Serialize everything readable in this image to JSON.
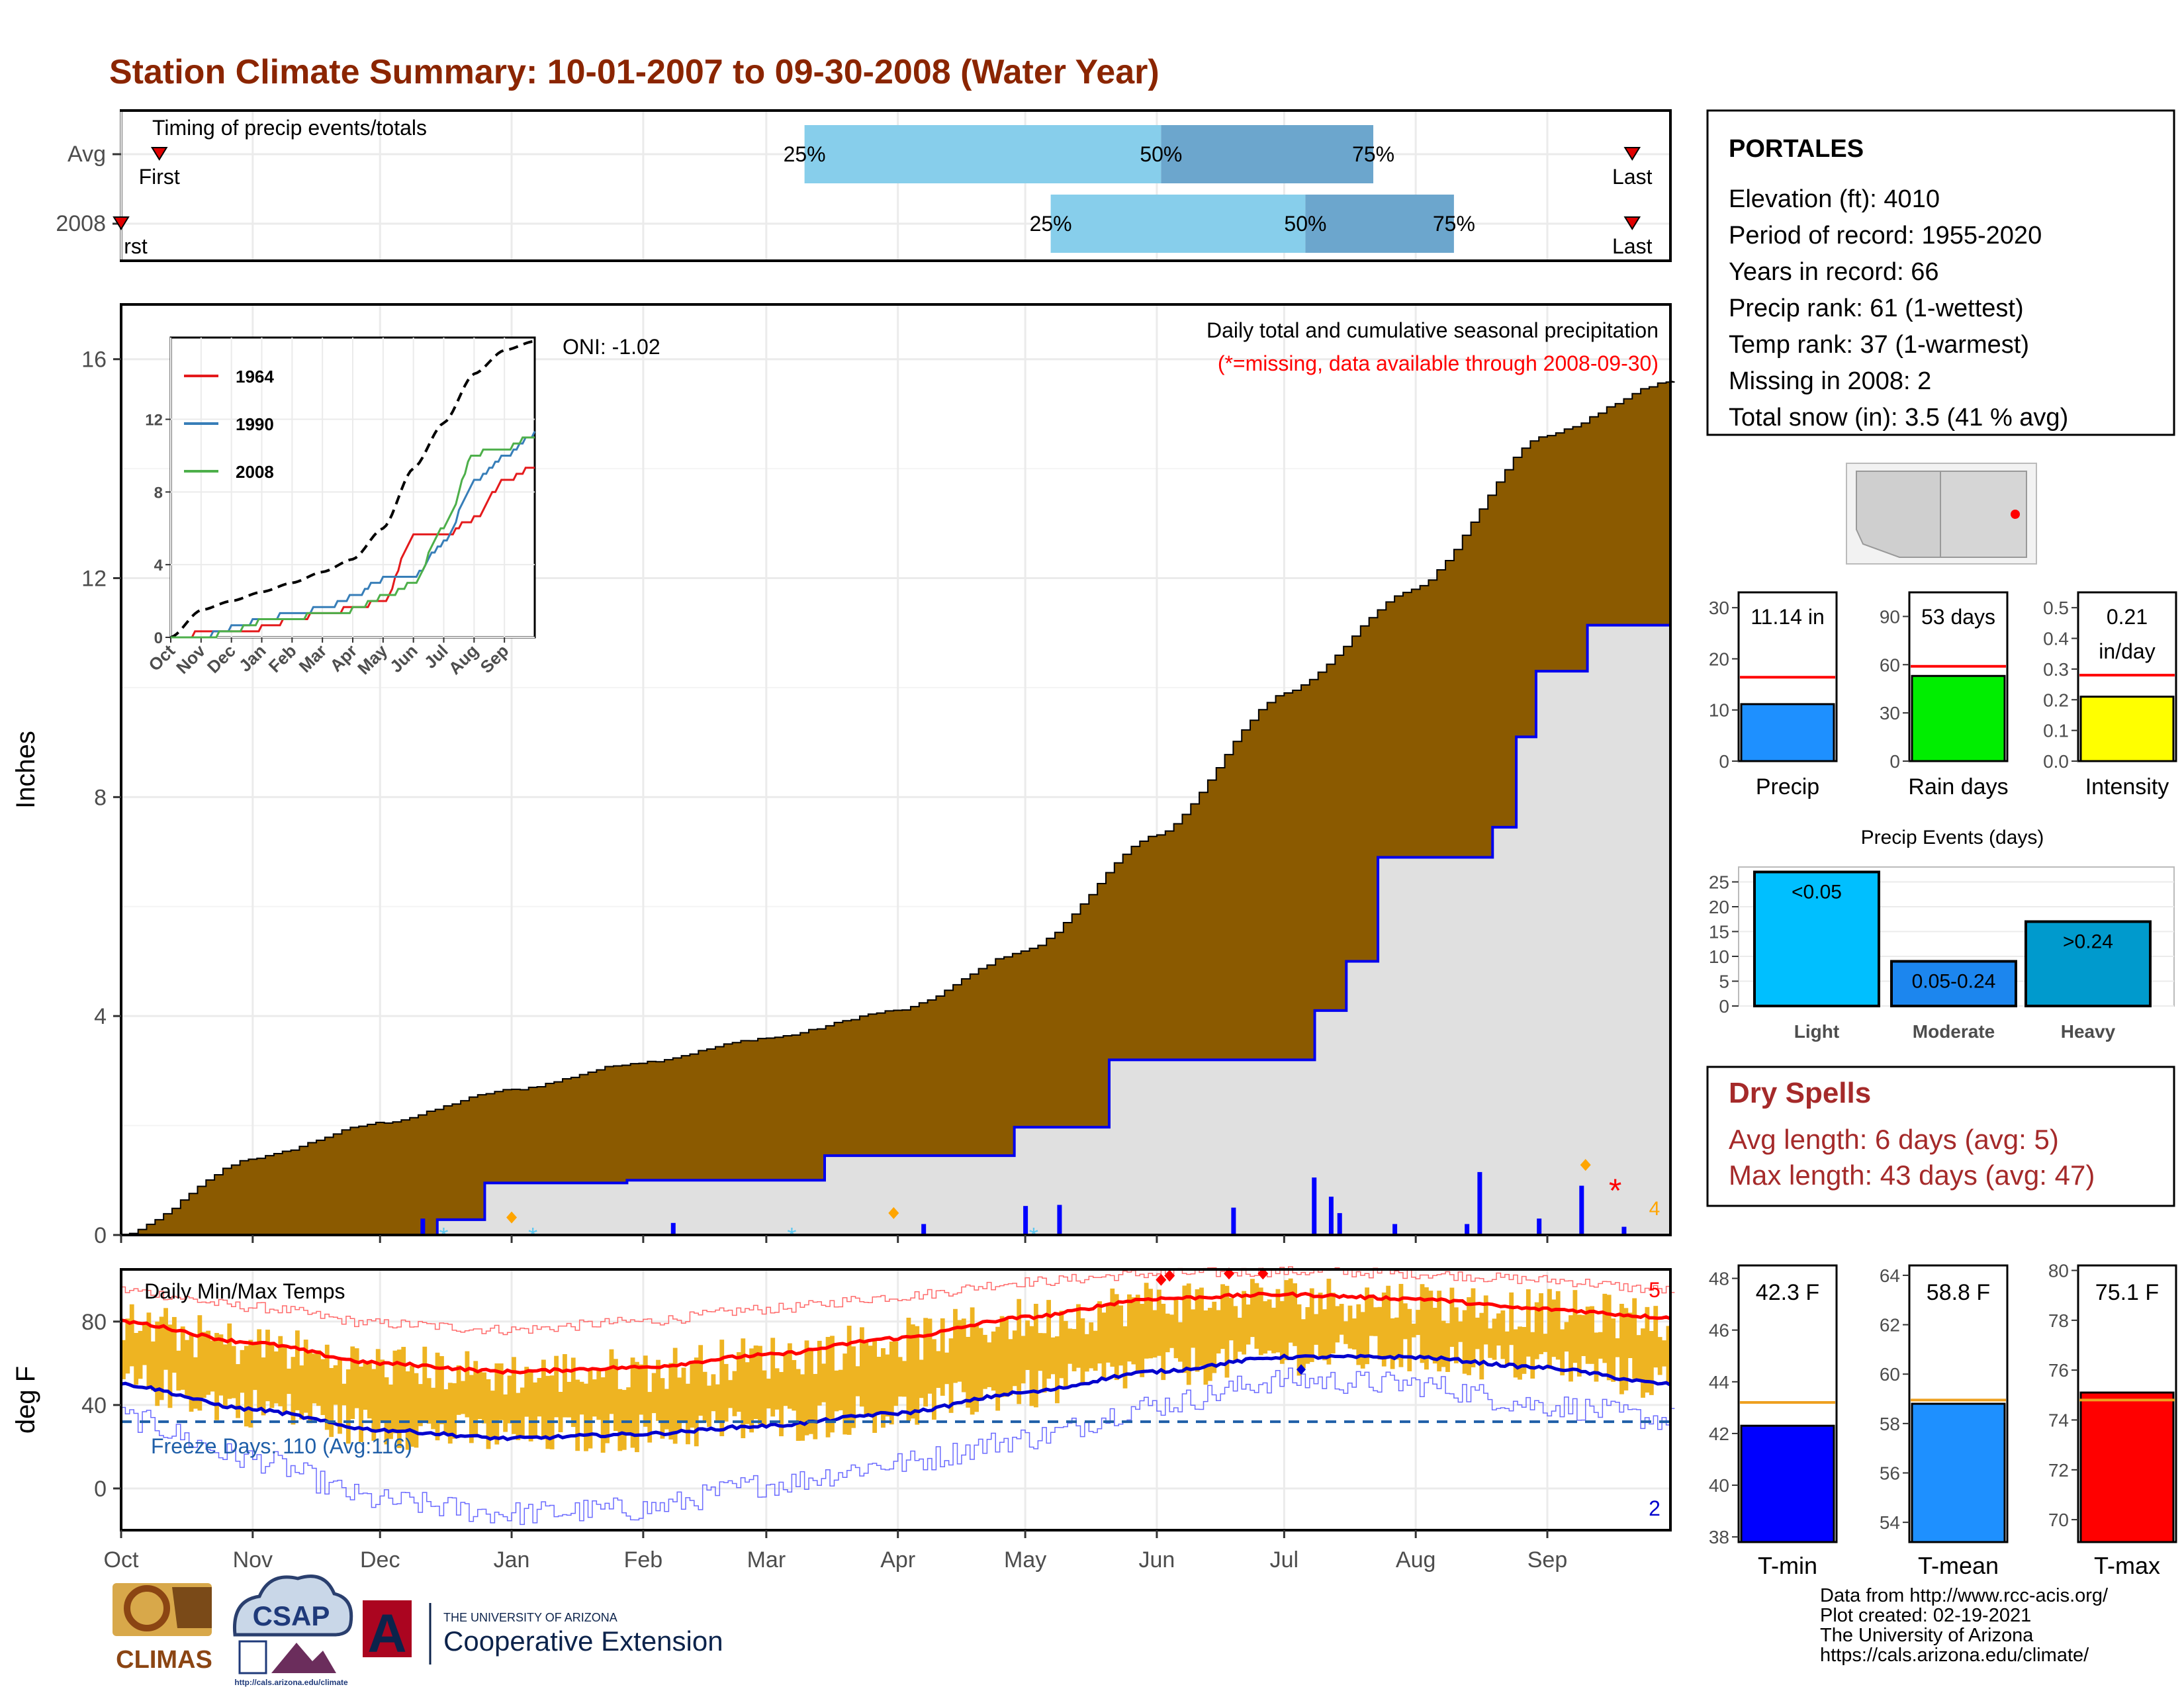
{
  "title": "Station Climate Summary: 10-01-2007 to 09-30-2008 (Water Year)",
  "colors": {
    "title": "#8B2500",
    "cum_avg_fill": "#8B5A00",
    "cum_year_line": "#0000EE",
    "cum_year_fill": "#E0E0E0",
    "quartile_light": "#87CEEB",
    "quartile_dark": "#6CA6CD",
    "temp_bar": "#EEB422",
    "max_line": "#FF0000",
    "min_line": "#0000CD",
    "freeze_line": "#1F5FA8",
    "dry_spell_text": "#A52A2A"
  },
  "timing_panel": {
    "label": "Timing of precip events/totals",
    "rows": [
      "Avg",
      "2008"
    ],
    "first_label": "First",
    "first_label_2008": "rst",
    "last_label": "Last",
    "avg_quartiles": [
      "25%",
      "50%",
      "75%"
    ],
    "y2008_quartiles": [
      "25%",
      "50%",
      "75%"
    ]
  },
  "precip_panel": {
    "ylabel": "Inches",
    "yticks": [
      "0",
      "4",
      "8",
      "12",
      "16"
    ],
    "header": "Daily total and cumulative seasonal precipitation",
    "note": "(*=missing, data available through 2008-09-30)",
    "oni": "ONI: -1.02",
    "count_label": "4"
  },
  "inset": {
    "yticks": [
      "0",
      "4",
      "8",
      "12"
    ],
    "xticks": [
      "Oct",
      "Nov",
      "Dec",
      "Jan",
      "Feb",
      "Mar",
      "Apr",
      "May",
      "Jun",
      "Jul",
      "Aug",
      "Sep"
    ],
    "legend": [
      {
        "name": "1964",
        "color": "#E41A1C"
      },
      {
        "name": "1990",
        "color": "#377EB8"
      },
      {
        "name": "2008",
        "color": "#4DAF4A"
      }
    ]
  },
  "temp_panel": {
    "ylabel": "deg F",
    "header": "Daily Min/Max Temps",
    "yticks": [
      "0",
      "40",
      "80"
    ],
    "freeze_label": "Freeze Days: 110 (Avg:116)",
    "max_count": "5",
    "min_count": "2",
    "xticks": [
      "Oct",
      "Nov",
      "Dec",
      "Jan",
      "Feb",
      "Mar",
      "Apr",
      "May",
      "Jun",
      "Jul",
      "Aug",
      "Sep"
    ]
  },
  "station": {
    "name": "PORTALES",
    "lines": [
      "Elevation (ft): 4010",
      "Period of record: 1955-2020",
      "Years in record: 66",
      "Precip rank: 61 (1-wettest)",
      "Temp rank: 37 (1-warmest)",
      "Missing in 2008: 2",
      "Total snow (in): 3.5 (41 % avg)"
    ]
  },
  "mini_bars": [
    {
      "label": "Precip",
      "value_text": "11.14 in",
      "value": 11.14,
      "avg": 16.4,
      "ymax": 33,
      "ticks": [
        "0",
        "10",
        "20",
        "30"
      ],
      "tick_vals": [
        0,
        10,
        20,
        30
      ],
      "color": "#1E90FF",
      "avg_color": "#FF0000"
    },
    {
      "label": "Rain days",
      "value_text": "53 days",
      "value": 53,
      "avg": 59,
      "ymax": 105,
      "ticks": [
        "0",
        "30",
        "60",
        "90"
      ],
      "tick_vals": [
        0,
        30,
        60,
        90
      ],
      "color": "#00EE00",
      "avg_color": "#FF0000"
    },
    {
      "label": "Intensity",
      "value_text": "0.21 in/day",
      "value_line1": "0.21",
      "value_line2": "in/day",
      "value": 0.21,
      "avg": 0.28,
      "ymax": 0.55,
      "ticks": [
        "0.0",
        "0.1",
        "0.2",
        "0.3",
        "0.4",
        "0.5"
      ],
      "tick_vals": [
        0,
        0.1,
        0.2,
        0.3,
        0.4,
        0.5
      ],
      "color": "#FFFF00",
      "avg_color": "#FF0000"
    }
  ],
  "precip_events": {
    "title": "Precip Events (days)",
    "ticks": [
      "0",
      "5",
      "10",
      "15",
      "20",
      "25"
    ],
    "tick_vals": [
      0,
      5,
      10,
      15,
      20,
      25
    ],
    "ymax": 28,
    "bars": [
      {
        "label": "Light",
        "value": 27,
        "text": "<0.05",
        "color": "#00BFFF"
      },
      {
        "label": "Moderate",
        "value": 9,
        "text": "0.05-0.24",
        "color": "#1C86EE"
      },
      {
        "label": "Heavy",
        "value": 17,
        "text": ">0.24",
        "color": "#009ACD"
      }
    ]
  },
  "dry_spells": {
    "title": "Dry Spells",
    "avg_line": "Avg length: 6 days (avg: 5)",
    "max_line": "Max length: 43 days (avg: 47)"
  },
  "temp_bars": [
    {
      "label": "T-min",
      "value_text": "42.3 F",
      "value": 42.3,
      "avg": 43.2,
      "ymin": 37.8,
      "ymax": 48.5,
      "ticks": [
        "38",
        "40",
        "42",
        "44",
        "46",
        "48"
      ],
      "tick_vals": [
        38,
        40,
        42,
        44,
        46,
        48
      ],
      "color": "#0000FF",
      "avg_color": "#EEA020"
    },
    {
      "label": "T-mean",
      "value_text": "58.8 F",
      "value": 58.8,
      "avg": 58.95,
      "ymin": 53.2,
      "ymax": 64.4,
      "ticks": [
        "54",
        "56",
        "58",
        "60",
        "62",
        "64"
      ],
      "tick_vals": [
        54,
        56,
        58,
        60,
        62,
        64
      ],
      "color": "#1E90FF",
      "avg_color": "#EEA020"
    },
    {
      "label": "T-max",
      "value_text": "75.1 F",
      "value": 75.1,
      "avg": 74.8,
      "ymin": 69.1,
      "ymax": 80.2,
      "ticks": [
        "70",
        "72",
        "74",
        "76",
        "78",
        "80"
      ],
      "tick_vals": [
        70,
        72,
        74,
        76,
        78,
        80
      ],
      "color": "#FF0000",
      "avg_color": "#EEA020"
    }
  ],
  "footer": {
    "credits": [
      "Data from http://www.rcc-acis.org/",
      "Plot created: 02-19-2021",
      "The University of Arizona",
      "https://cals.arizona.edu/climate/"
    ],
    "logo_climas": "CLIMAS",
    "logo_csap": "CSAP",
    "logo_csap_url": "http://cals.arizona.edu/climate",
    "ua_small": "THE UNIVERSITY OF ARIZONA",
    "ua_big": "Cooperative Extension"
  },
  "chart_data": [
    {
      "type": "bar",
      "title": "Timing of precip events/totals",
      "categories": [
        "Avg",
        "2008"
      ],
      "x_unit": "day of water year",
      "series": [
        {
          "name": "Avg",
          "first": 9,
          "q25": 161,
          "q50": 245,
          "q75": 295,
          "last": 356
        },
        {
          "name": "2008",
          "first": 0,
          "q25": 219,
          "q50": 279,
          "q75": 314,
          "last": 356
        }
      ]
    },
    {
      "type": "area",
      "title": "Daily total and cumulative seasonal precipitation",
      "ylabel": "Inches",
      "ylim": [
        0,
        17
      ],
      "x": [
        "10-01",
        "11-01",
        "12-01",
        "01-01",
        "02-01",
        "03-01",
        "04-01",
        "05-01",
        "06-01",
        "07-01",
        "08-01",
        "09-01",
        "09-30"
      ],
      "series": [
        {
          "name": "Avg cumulative",
          "values": [
            0,
            1.4,
            2.05,
            2.65,
            3.15,
            3.6,
            4.1,
            5.2,
            7.3,
            9.9,
            11.8,
            14.6,
            15.6
          ]
        },
        {
          "name": "2008 cumulative",
          "values": [
            0,
            0.02,
            0.05,
            0.95,
            1.0,
            1.45,
            1.52,
            1.97,
            3.2,
            4.9,
            6.9,
            10.3,
            11.14
          ]
        }
      ],
      "daily_bars": [
        {
          "x": "12-11",
          "y": 0.3
        },
        {
          "x": "02-08",
          "y": 0.22
        },
        {
          "x": "04-07",
          "y": 0.2
        },
        {
          "x": "05-01",
          "y": 0.53
        },
        {
          "x": "05-09",
          "y": 0.55
        },
        {
          "x": "06-19",
          "y": 0.5
        },
        {
          "x": "07-08",
          "y": 1.05
        },
        {
          "x": "07-12",
          "y": 0.7
        },
        {
          "x": "07-14",
          "y": 0.4
        },
        {
          "x": "07-27",
          "y": 0.2
        },
        {
          "x": "08-13",
          "y": 0.2
        },
        {
          "x": "08-16",
          "y": 1.15
        },
        {
          "x": "08-30",
          "y": 0.3
        },
        {
          "x": "09-09",
          "y": 0.9
        },
        {
          "x": "09-19",
          "y": 0.15
        }
      ]
    },
    {
      "type": "line",
      "title": "",
      "ylim": [
        0,
        16.5
      ],
      "x": [
        "Oct",
        "Nov",
        "Dec",
        "Jan",
        "Feb",
        "Mar",
        "Apr",
        "May",
        "Jun",
        "Jul",
        "Aug",
        "Sep",
        "end"
      ],
      "series": [
        {
          "name": "",
          "values": [
            0,
            1.5,
            2.0,
            2.5,
            3.0,
            3.6,
            4.3,
            6.0,
            9.3,
            11.8,
            14.5,
            15.8,
            16.3
          ]
        },
        {
          "name": "1964",
          "values": [
            0,
            0.2,
            0.4,
            0.5,
            1.0,
            1.3,
            1.6,
            2.0,
            5.5,
            5.6,
            6.5,
            8.6,
            9.4
          ]
        },
        {
          "name": "1990",
          "values": [
            0,
            0,
            0.5,
            1.0,
            1.3,
            1.6,
            2.2,
            3.2,
            3.3,
            5.2,
            8.5,
            10.0,
            11.2
          ]
        },
        {
          "name": "2008",
          "values": [
            0,
            0,
            0.3,
            0.9,
            1.0,
            1.4,
            1.5,
            2.2,
            3.0,
            6.0,
            10.1,
            10.4,
            11.1
          ]
        }
      ]
    },
    {
      "type": "line",
      "title": "Daily Min/Max Temps",
      "ylabel": "deg F",
      "ylim": [
        -20,
        105
      ],
      "x": [
        "Oct",
        "Nov",
        "Dec",
        "Jan",
        "Feb",
        "Mar",
        "Apr",
        "May",
        "Jun",
        "Jul",
        "Aug",
        "Sep",
        "end"
      ],
      "series": [
        {
          "name": "avg max",
          "values": [
            80,
            70,
            60,
            56,
            58,
            64,
            72,
            82,
            91,
            93,
            91,
            86,
            82
          ]
        },
        {
          "name": "avg min",
          "values": [
            50,
            38,
            28,
            24,
            26,
            30,
            36,
            46,
            56,
            63,
            63,
            58,
            50
          ]
        },
        {
          "name": "record max",
          "values": [
            95,
            87,
            79,
            76,
            80,
            86,
            92,
            99,
            103,
            104,
            103,
            100,
            95
          ]
        },
        {
          "name": "record min",
          "values": [
            34,
            14,
            -6,
            -12,
            -10,
            2,
            12,
            24,
            40,
            52,
            50,
            40,
            33
          ]
        }
      ],
      "freeze_threshold": 32
    },
    {
      "type": "bar",
      "title": "Precip Events (days)",
      "categories": [
        "Light",
        "Moderate",
        "Heavy"
      ],
      "values": [
        27,
        9,
        17
      ]
    }
  ]
}
